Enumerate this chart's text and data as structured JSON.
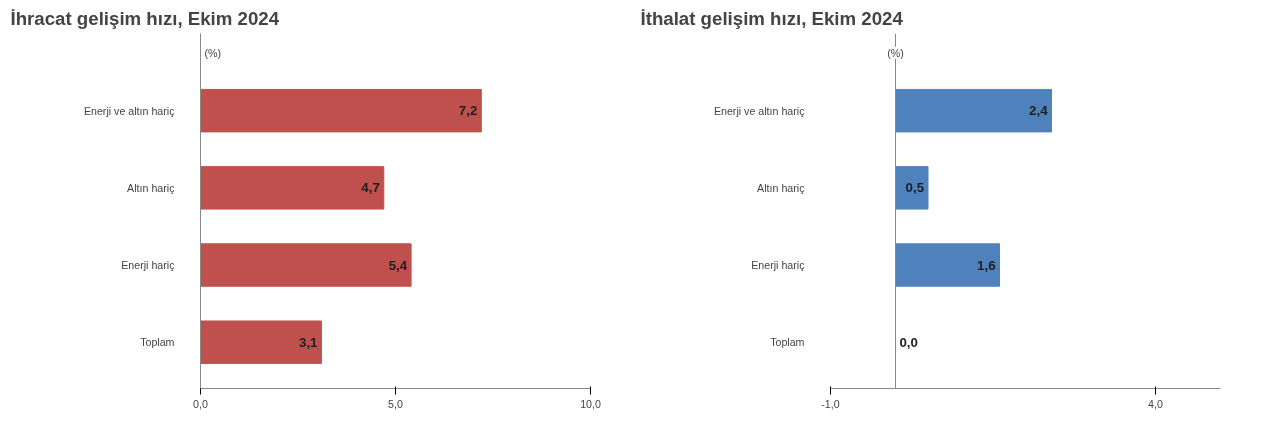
{
  "chart_data": [
    {
      "type": "bar",
      "orientation": "horizontal",
      "title": "İhracat gelişim hızı, Ekim 2024",
      "annotations": [
        "(%)"
      ],
      "categories": [
        "Enerji ve altın hariç",
        "Altın hariç",
        "Enerji hariç",
        "Toplam"
      ],
      "values": [
        7.2,
        4.7,
        5.4,
        3.1
      ],
      "value_labels": [
        "7,2",
        "4,7",
        "5,4",
        "3,1"
      ],
      "color": "#c0504d",
      "xlim": [
        0,
        10
      ],
      "xticks": [
        {
          "value": 0,
          "label": "0,0"
        },
        {
          "value": 5,
          "label": "5,0"
        },
        {
          "value": 10,
          "label": "10,0"
        }
      ],
      "grid": false
    },
    {
      "type": "bar",
      "orientation": "horizontal",
      "title": "İthalat gelişim hızı, Ekim 2024",
      "annotations": [
        "(%)"
      ],
      "categories": [
        "Enerji ve altın hariç",
        "Altın hariç",
        "Enerji hariç",
        "Toplam"
      ],
      "values": [
        2.4,
        0.5,
        1.6,
        0.0
      ],
      "value_labels": [
        "2,4",
        "0,5",
        "1,6",
        "0,0"
      ],
      "color": "#4f81bd",
      "xlim": [
        -1,
        5
      ],
      "xticks": [
        {
          "value": -1,
          "label": "-1,0"
        },
        {
          "value": 4,
          "label": "4,0"
        }
      ],
      "grid": false
    }
  ]
}
